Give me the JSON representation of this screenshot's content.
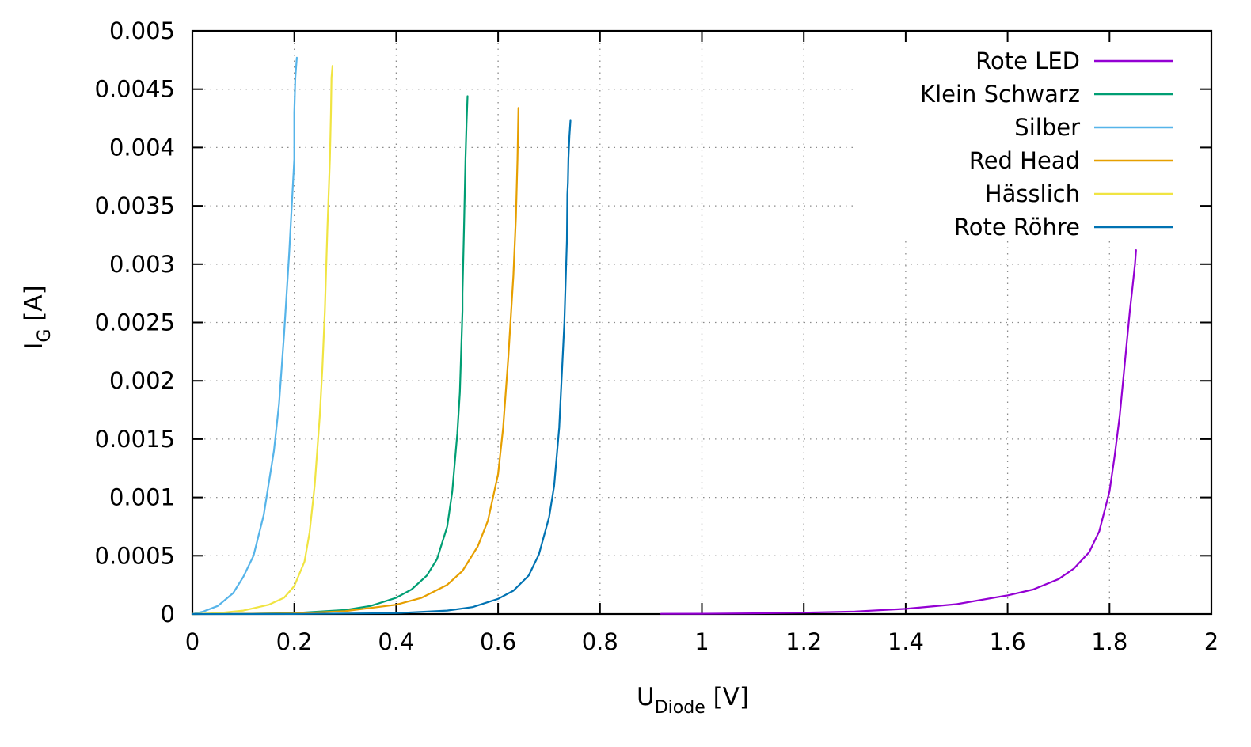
{
  "chart_data": {
    "type": "line",
    "xlabel": {
      "main": "U",
      "sub": "Diode",
      "unit": " [V]"
    },
    "ylabel": {
      "main": "I",
      "sub": "G",
      "unit": " [A]"
    },
    "xlim": [
      0,
      2
    ],
    "ylim": [
      0,
      0.005
    ],
    "x_ticks": [
      0,
      0.2,
      0.4,
      0.6,
      0.8,
      1,
      1.2,
      1.4,
      1.6,
      1.8,
      2
    ],
    "x_tick_labels": [
      "0",
      "0.2",
      "0.4",
      "0.6",
      "0.8",
      "1",
      "1.2",
      "1.4",
      "1.6",
      "1.8",
      "2"
    ],
    "y_ticks": [
      0,
      0.0005,
      0.001,
      0.0015,
      0.002,
      0.0025,
      0.003,
      0.0035,
      0.004,
      0.0045,
      0.005
    ],
    "y_tick_labels": [
      "0",
      "0.0005",
      "0.001",
      "0.0015",
      "0.002",
      "0.0025",
      "0.003",
      "0.0035",
      "0.004",
      "0.0045",
      "0.005"
    ],
    "grid": true,
    "legend_position": "top-right",
    "series": [
      {
        "name": "Rote LED",
        "color": "#9400d3",
        "x": [
          0.92,
          1.0,
          1.1,
          1.2,
          1.3,
          1.4,
          1.5,
          1.6,
          1.65,
          1.7,
          1.73,
          1.76,
          1.78,
          1.8,
          1.81,
          1.82,
          1.83,
          1.84,
          1.845,
          1.85,
          1.852
        ],
        "y": [
          2e-06,
          3e-06,
          6e-06,
          1.2e-05,
          2.2e-05,
          4.5e-05,
          8.5e-05,
          0.00016,
          0.00021,
          0.0003,
          0.00039,
          0.00053,
          0.00071,
          0.00105,
          0.00135,
          0.0017,
          0.00215,
          0.0026,
          0.0028,
          0.003,
          0.00312
        ]
      },
      {
        "name": "Klein Schwarz",
        "color": "#009e73",
        "x": [
          0.0,
          0.1,
          0.2,
          0.3,
          0.35,
          0.4,
          0.43,
          0.46,
          0.48,
          0.5,
          0.51,
          0.52,
          0.525,
          0.53,
          0.53,
          0.533,
          0.536,
          0.538,
          0.54
        ],
        "y": [
          0.0,
          2e-06,
          8e-06,
          3.5e-05,
          7e-05,
          0.00014,
          0.00021,
          0.00033,
          0.00047,
          0.00075,
          0.00105,
          0.00155,
          0.0019,
          0.0026,
          0.00275,
          0.0033,
          0.0039,
          0.0042,
          0.00444
        ]
      },
      {
        "name": "Silber",
        "color": "#56b4e9",
        "x": [
          0.0,
          0.02,
          0.05,
          0.08,
          0.1,
          0.12,
          0.14,
          0.16,
          0.17,
          0.18,
          0.19,
          0.195,
          0.2,
          0.2,
          0.202,
          0.205
        ],
        "y": [
          0.0,
          2e-05,
          7e-05,
          0.00018,
          0.00032,
          0.0005,
          0.00085,
          0.0014,
          0.0018,
          0.0024,
          0.0031,
          0.0035,
          0.0039,
          0.0043,
          0.0046,
          0.00477
        ]
      },
      {
        "name": "Red Head",
        "color": "#e69f00",
        "x": [
          0.0,
          0.1,
          0.2,
          0.3,
          0.4,
          0.45,
          0.5,
          0.53,
          0.56,
          0.58,
          0.6,
          0.61,
          0.62,
          0.63,
          0.635,
          0.638,
          0.64
        ],
        "y": [
          0.0,
          2e-06,
          6e-06,
          2.5e-05,
          8e-05,
          0.00014,
          0.00025,
          0.00037,
          0.00058,
          0.0008,
          0.0012,
          0.0016,
          0.0022,
          0.0029,
          0.0034,
          0.0039,
          0.00434
        ]
      },
      {
        "name": "Hässlich",
        "color": "#f0e442",
        "x": [
          0.0,
          0.05,
          0.1,
          0.15,
          0.18,
          0.2,
          0.22,
          0.23,
          0.24,
          0.25,
          0.255,
          0.26,
          0.265,
          0.27,
          0.272,
          0.273,
          0.275
        ],
        "y": [
          0.0,
          8e-06,
          3e-05,
          8e-05,
          0.00014,
          0.00024,
          0.00045,
          0.0007,
          0.0011,
          0.0017,
          0.0021,
          0.0026,
          0.0033,
          0.0039,
          0.0043,
          0.0046,
          0.0047
        ]
      },
      {
        "name": "Rote Röhre",
        "color": "#0072b2",
        "x": [
          0.0,
          0.2,
          0.4,
          0.5,
          0.55,
          0.6,
          0.63,
          0.66,
          0.68,
          0.7,
          0.71,
          0.72,
          0.73,
          0.735,
          0.736,
          0.737,
          0.738,
          0.74,
          0.742
        ],
        "y": [
          0.0,
          1e-06,
          8e-06,
          3e-05,
          6e-05,
          0.00013,
          0.0002,
          0.00033,
          0.00051,
          0.00083,
          0.0011,
          0.0016,
          0.0025,
          0.0032,
          0.0036,
          0.0037,
          0.0039,
          0.0041,
          0.00423
        ]
      }
    ]
  }
}
